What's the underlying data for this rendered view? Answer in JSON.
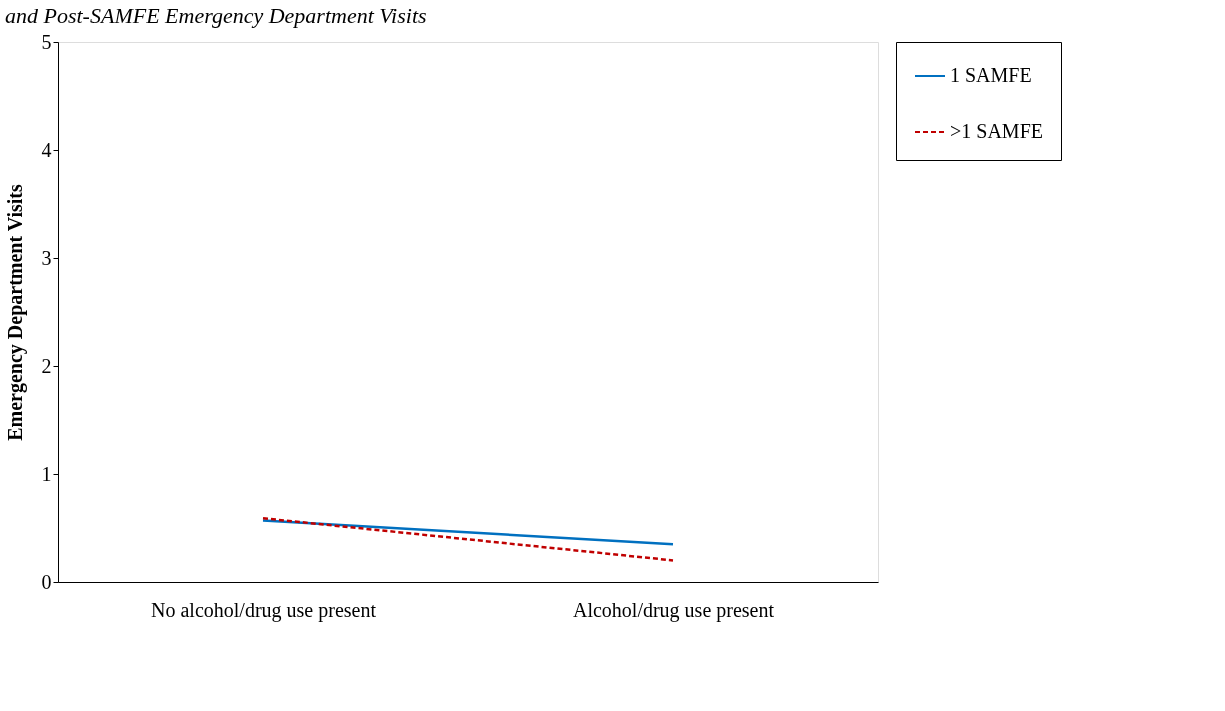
{
  "chart_data": {
    "type": "line",
    "title": "and Post-SAMFE Emergency Department Visits",
    "ylabel": "Emergency Department Visits",
    "categories": [
      "No alcohol/drug use present",
      "Alcohol/drug use present"
    ],
    "series": [
      {
        "name": "1 SAMFE",
        "color": "#0070c0",
        "line_style": "solid",
        "values": [
          0.57,
          0.35
        ]
      },
      {
        "name": ">1 SAMFE",
        "color": "#c00000",
        "line_style": "dashed",
        "values": [
          0.59,
          0.2
        ]
      }
    ],
    "ylim": [
      0,
      5
    ],
    "yticks": [
      0,
      1,
      2,
      3,
      4,
      5
    ],
    "grid": false,
    "legend": "right",
    "marker": "none"
  }
}
